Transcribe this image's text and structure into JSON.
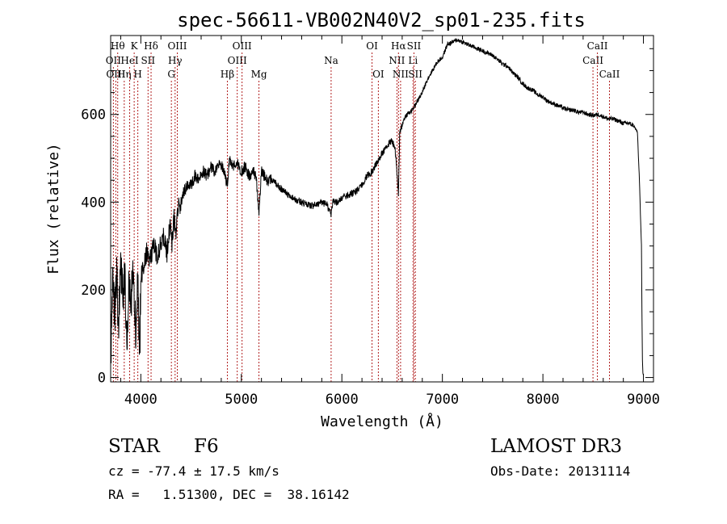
{
  "chart_data": {
    "type": "line",
    "title": "spec-56611-VB002N40V2_sp01-235.fits",
    "xlabel": "Wavelength (Å)",
    "ylabel": "Flux (relative)",
    "xlim": [
      3700,
      9100
    ],
    "ylim": [
      -10,
      780
    ],
    "x_ticks": [
      4000,
      5000,
      6000,
      7000,
      8000,
      9000
    ],
    "y_ticks": [
      0,
      200,
      400,
      600
    ],
    "spectrum": {
      "x": [
        3700,
        3720,
        3740,
        3760,
        3780,
        3800,
        3820,
        3840,
        3860,
        3880,
        3900,
        3920,
        3950,
        3970,
        3990,
        4000,
        4030,
        4060,
        4080,
        4100,
        4130,
        4160,
        4200,
        4230,
        4260,
        4290,
        4310,
        4330,
        4350,
        4380,
        4410,
        4440,
        4470,
        4500,
        4540,
        4580,
        4620,
        4660,
        4700,
        4740,
        4780,
        4820,
        4861,
        4880,
        4920,
        4960,
        5000,
        5040,
        5080,
        5120,
        5150,
        5175,
        5200,
        5250,
        5300,
        5350,
        5400,
        5450,
        5500,
        5550,
        5600,
        5650,
        5700,
        5750,
        5800,
        5850,
        5893,
        5910,
        5950,
        6000,
        6050,
        6100,
        6150,
        6200,
        6250,
        6300,
        6350,
        6400,
        6450,
        6500,
        6530,
        6550,
        6563,
        6575,
        6590,
        6620,
        6650,
        6700,
        6750,
        6800,
        6850,
        6900,
        6950,
        7000,
        7050,
        7100,
        7150,
        7200,
        7250,
        7300,
        7350,
        7400,
        7450,
        7500,
        7550,
        7600,
        7650,
        7700,
        7750,
        7800,
        7850,
        7900,
        7950,
        8000,
        8050,
        8100,
        8150,
        8200,
        8250,
        8300,
        8350,
        8400,
        8450,
        8500,
        8550,
        8600,
        8650,
        8700,
        8750,
        8800,
        8850,
        8900,
        8940,
        8960,
        8980,
        8985,
        8990,
        8995,
        9000
      ],
      "y": [
        30,
        200,
        150,
        230,
        120,
        260,
        180,
        240,
        60,
        210,
        170,
        230,
        100,
        220,
        60,
        220,
        250,
        290,
        260,
        280,
        300,
        270,
        310,
        330,
        290,
        350,
        300,
        360,
        340,
        390,
        410,
        430,
        440,
        440,
        460,
        450,
        470,
        460,
        480,
        470,
        490,
        480,
        440,
        500,
        480,
        490,
        470,
        480,
        460,
        470,
        450,
        380,
        470,
        450,
        450,
        440,
        430,
        420,
        410,
        405,
        400,
        395,
        390,
        395,
        400,
        395,
        370,
        400,
        400,
        410,
        415,
        420,
        425,
        440,
        460,
        470,
        490,
        510,
        530,
        540,
        520,
        460,
        420,
        560,
        570,
        590,
        600,
        610,
        630,
        650,
        680,
        700,
        720,
        730,
        760,
        765,
        770,
        765,
        760,
        755,
        750,
        745,
        740,
        735,
        725,
        715,
        710,
        695,
        685,
        670,
        660,
        655,
        645,
        640,
        630,
        625,
        620,
        615,
        610,
        610,
        605,
        605,
        600,
        598,
        600,
        595,
        590,
        590,
        585,
        580,
        580,
        575,
        560,
        450,
        300,
        150,
        40,
        10,
        5
      ]
    },
    "lines": [
      {
        "wl": 3727,
        "label": "OII",
        "tier": 2
      },
      {
        "wl": 3751,
        "label": "OIII",
        "tier": 3
      },
      {
        "wl": 3770,
        "label": "Hθ",
        "tier": 1
      },
      {
        "wl": 3835,
        "label": "Hη",
        "tier": 3
      },
      {
        "wl": 3889,
        "label": "HeI",
        "tier": 2
      },
      {
        "wl": 3934,
        "label": "K",
        "tier": 1
      },
      {
        "wl": 3970,
        "label": "H",
        "tier": 3
      },
      {
        "wl": 4072,
        "label": "SII",
        "tier": 2
      },
      {
        "wl": 4102,
        "label": "Hδ",
        "tier": 1
      },
      {
        "wl": 4304,
        "label": "G",
        "tier": 3
      },
      {
        "wl": 4341,
        "label": "Hγ",
        "tier": 2
      },
      {
        "wl": 4363,
        "label": "OIII",
        "tier": 1
      },
      {
        "wl": 4861,
        "label": "Hβ",
        "tier": 3
      },
      {
        "wl": 4959,
        "label": "OIII",
        "tier": 2
      },
      {
        "wl": 5007,
        "label": "OIII",
        "tier": 1
      },
      {
        "wl": 5175,
        "label": "Mg",
        "tier": 3
      },
      {
        "wl": 5893,
        "label": "Na",
        "tier": 2
      },
      {
        "wl": 6300,
        "label": "OI",
        "tier": 1
      },
      {
        "wl": 6363,
        "label": "OI",
        "tier": 3
      },
      {
        "wl": 6548,
        "label": "NII",
        "tier": 2
      },
      {
        "wl": 6563,
        "label": "Hα",
        "tier": 1
      },
      {
        "wl": 6584,
        "label": "NII",
        "tier": 3
      },
      {
        "wl": 6708,
        "label": "Li",
        "tier": 2
      },
      {
        "wl": 6717,
        "label": "SII",
        "tier": 1
      },
      {
        "wl": 6731,
        "label": "SII",
        "tier": 3
      },
      {
        "wl": 8498,
        "label": "CaII",
        "tier": 2
      },
      {
        "wl": 8542,
        "label": "CaII",
        "tier": 1
      },
      {
        "wl": 8662,
        "label": "CaII",
        "tier": 3
      }
    ]
  },
  "info": {
    "object_class": "STAR",
    "subclass": "F6",
    "survey": "LAMOST DR3",
    "cz_text": "cz = -77.4 ± 17.5 km/s",
    "obs_date_text": "Obs-Date: 20131114",
    "radec_text": "RA =   1.51300, DEC =  38.16142"
  },
  "colors": {
    "line_marker": "#b22222",
    "spectrum": "#000000"
  }
}
